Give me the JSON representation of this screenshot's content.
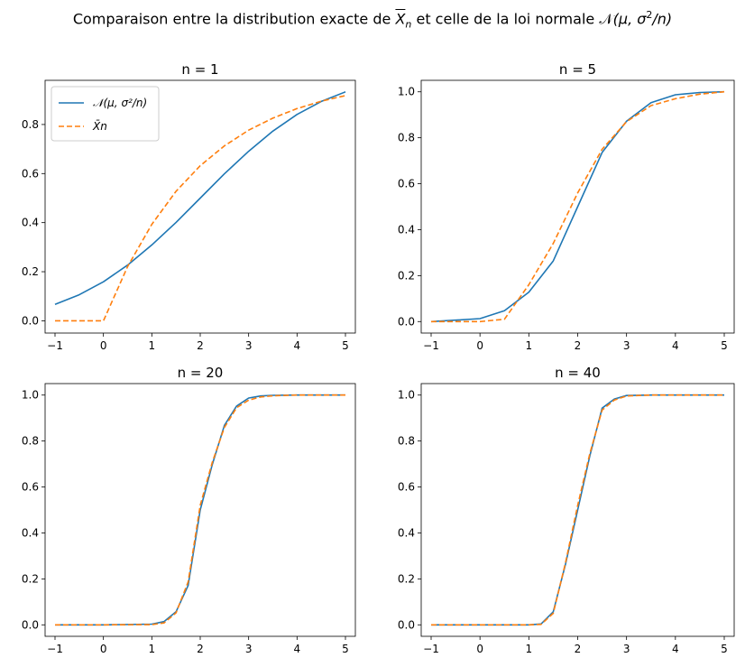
{
  "figure": {
    "suptitle_prefix": "Comparaison entre la distribution exacte de ",
    "suptitle_xbar": "X",
    "suptitle_n": "n",
    "suptitle_middle": " et celle de la loi normale ",
    "suptitle_N": "𝒩",
    "suptitle_args": "(μ, σ",
    "suptitle_sq": "2",
    "suptitle_tail": "/n)"
  },
  "colors": {
    "normal": "#1f77b4",
    "exact": "#ff7f0e"
  },
  "chart_data": [
    {
      "type": "line",
      "title": "n = 1",
      "xlim": [
        -1,
        5
      ],
      "ylim": [
        -0.05,
        0.98
      ],
      "xticks": [
        -1,
        0,
        1,
        2,
        3,
        4,
        5
      ],
      "yticks": [
        "0.0",
        "0.2",
        "0.4",
        "0.6",
        "0.8"
      ],
      "legend": {
        "placement": "upper-left",
        "entries": [
          "𝒩(μ, σ²/n)",
          "X̄n"
        ]
      },
      "series": [
        {
          "style": "solid",
          "x": [
            -1,
            -0.5,
            0,
            0.5,
            1,
            1.5,
            2,
            2.5,
            3,
            3.5,
            4,
            4.5,
            5
          ],
          "y": [
            0.067,
            0.106,
            0.159,
            0.227,
            0.309,
            0.401,
            0.5,
            0.599,
            0.691,
            0.773,
            0.841,
            0.894,
            0.933
          ]
        },
        {
          "style": "dashed",
          "x": [
            -1,
            -0.5,
            0,
            0.5,
            1,
            1.5,
            2,
            2.5,
            3,
            3.5,
            4,
            4.5,
            5
          ],
          "y": [
            0,
            0,
            0,
            0.221,
            0.393,
            0.528,
            0.632,
            0.713,
            0.777,
            0.826,
            0.865,
            0.895,
            0.918
          ]
        }
      ]
    },
    {
      "type": "line",
      "title": "n = 5",
      "xlim": [
        -1,
        5
      ],
      "ylim": [
        -0.05,
        1.05
      ],
      "xticks": [
        -1,
        0,
        1,
        2,
        3,
        4,
        5
      ],
      "yticks": [
        "0.0",
        "0.2",
        "0.4",
        "0.6",
        "0.8",
        "1.0"
      ],
      "series": [
        {
          "style": "solid",
          "x": [
            -1,
            -0.5,
            0,
            0.5,
            1,
            1.5,
            2,
            2.5,
            3,
            3.5,
            4,
            4.5,
            5
          ],
          "y": [
            0.0,
            0.006,
            0.013,
            0.047,
            0.128,
            0.264,
            0.5,
            0.736,
            0.872,
            0.953,
            0.987,
            0.997,
            1.0
          ]
        },
        {
          "style": "dashed",
          "x": [
            -1,
            -0.5,
            0,
            0.5,
            1,
            1.5,
            2,
            2.5,
            3,
            3.5,
            4,
            4.5,
            5
          ],
          "y": [
            0,
            0,
            0,
            0.01,
            0.16,
            0.34,
            0.56,
            0.75,
            0.87,
            0.94,
            0.97,
            0.99,
            1.0
          ]
        }
      ]
    },
    {
      "type": "line",
      "title": "n = 20",
      "xlim": [
        -1,
        5
      ],
      "ylim": [
        -0.05,
        1.05
      ],
      "xticks": [
        -1,
        0,
        1,
        2,
        3,
        4,
        5
      ],
      "yticks": [
        "0.0",
        "0.2",
        "0.4",
        "0.6",
        "0.8",
        "1.0"
      ],
      "series": [
        {
          "style": "solid",
          "x": [
            -1,
            0,
            1,
            1.25,
            1.5,
            1.75,
            2,
            2.25,
            2.5,
            2.75,
            3,
            3.25,
            3.5,
            4,
            5
          ],
          "y": [
            0,
            0,
            0.003,
            0.014,
            0.057,
            0.171,
            0.5,
            0.698,
            0.868,
            0.952,
            0.987,
            0.996,
            0.999,
            1.0,
            1.0
          ]
        },
        {
          "style": "dashed",
          "x": [
            -1,
            0,
            1,
            1.25,
            1.5,
            1.75,
            2,
            2.25,
            2.5,
            2.75,
            3,
            3.25,
            3.5,
            4,
            5
          ],
          "y": [
            0,
            0,
            0.001,
            0.008,
            0.052,
            0.187,
            0.52,
            0.708,
            0.859,
            0.945,
            0.978,
            0.992,
            0.997,
            1.0,
            1.0
          ]
        }
      ]
    },
    {
      "type": "line",
      "title": "n = 40",
      "xlim": [
        -1,
        5
      ],
      "ylim": [
        -0.05,
        1.05
      ],
      "xticks": [
        -1,
        0,
        1,
        2,
        3,
        4,
        5
      ],
      "yticks": [
        "0.0",
        "0.2",
        "0.4",
        "0.6",
        "0.8",
        "1.0"
      ],
      "series": [
        {
          "style": "solid",
          "x": [
            -1,
            0,
            1,
            1.25,
            1.5,
            1.75,
            2,
            2.25,
            2.5,
            2.75,
            3,
            3.5,
            4,
            5
          ],
          "y": [
            0,
            0,
            0,
            0.004,
            0.057,
            0.264,
            0.5,
            0.736,
            0.943,
            0.983,
            0.998,
            1.0,
            1.0,
            1.0
          ]
        },
        {
          "style": "dashed",
          "x": [
            -1,
            0,
            1,
            1.25,
            1.5,
            1.75,
            2,
            2.25,
            2.5,
            2.75,
            3,
            3.5,
            4,
            5
          ],
          "y": [
            0,
            0,
            0,
            0.002,
            0.05,
            0.27,
            0.52,
            0.746,
            0.935,
            0.978,
            0.996,
            1.0,
            1.0,
            1.0
          ]
        }
      ]
    }
  ]
}
